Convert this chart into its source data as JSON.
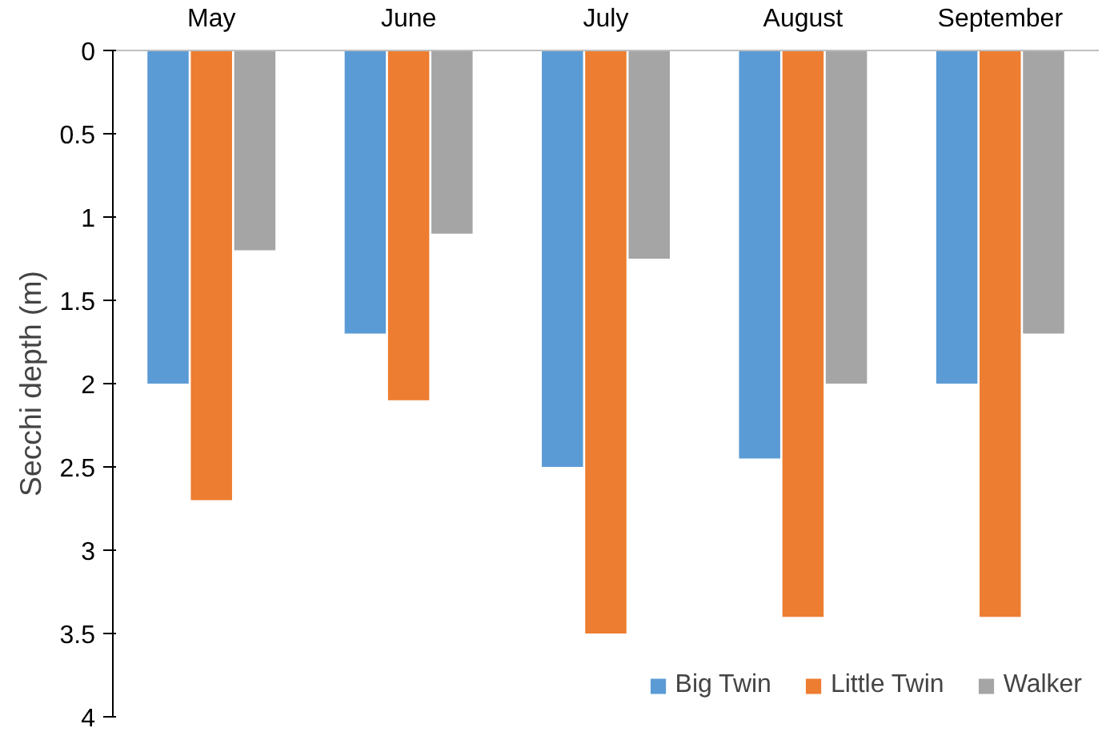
{
  "chart_data": {
    "type": "bar",
    "ylabel": "Secchi depth (m)",
    "categories": [
      "May",
      "June",
      "July",
      "August",
      "September"
    ],
    "series": [
      {
        "name": "Big Twin",
        "color": "#5b9bd5",
        "values": [
          2.0,
          1.7,
          2.5,
          2.45,
          2.0
        ]
      },
      {
        "name": "Little Twin",
        "color": "#ed7d31",
        "values": [
          2.7,
          2.1,
          3.5,
          3.4,
          3.4
        ]
      },
      {
        "name": "Walker",
        "color": "#a5a5a5",
        "values": [
          1.2,
          1.1,
          1.25,
          2.0,
          1.7
        ]
      }
    ],
    "ylim": [
      4,
      0
    ],
    "yticks": [
      0,
      {
        "value": 0.5,
        "label": "0.5"
      },
      1,
      {
        "value": 1.5,
        "label": "1.5"
      },
      2,
      {
        "value": 2.5,
        "label": "2.5"
      },
      3,
      {
        "value": 3.5,
        "label": "3.5"
      },
      4
    ],
    "grid": false,
    "legend": "bottom right"
  }
}
